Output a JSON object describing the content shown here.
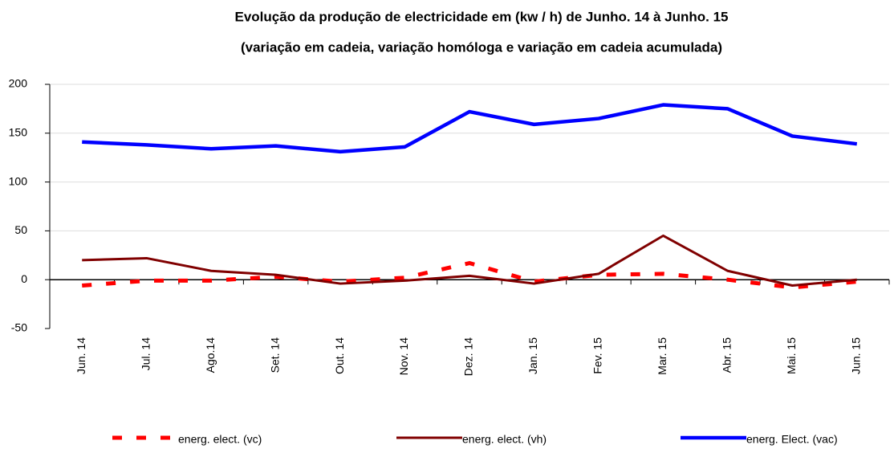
{
  "chart_data": {
    "type": "line",
    "title": [
      "Evolução da produção de electricidade em (kw / h) de Junho. 14 à Junho. 15",
      "(variação em cadeia, variação homóloga e variação em cadeia acumulada)"
    ],
    "categories": [
      "Jun. 14",
      "Jul. 14",
      "Ago.14",
      "Set. 14",
      "Out. 14",
      "Nov. 14",
      "Dez. 14",
      "Jan. 15",
      "Fev. 15",
      "Mar. 15",
      "Abr. 15",
      "Mai. 15",
      "Jun. 15"
    ],
    "series": [
      {
        "name": "energ. elect. (vc)",
        "color": "#ff0000",
        "line_style": "dashed",
        "values": [
          -6,
          -1,
          -1,
          3,
          -2,
          2,
          17,
          -2,
          5,
          6,
          0,
          -8,
          -2
        ]
      },
      {
        "name": "energ. elect. (vh)",
        "color": "#800000",
        "line_style": "solid",
        "values": [
          20,
          22,
          9,
          5,
          -4,
          -1,
          4,
          -4,
          6,
          45,
          9,
          -6,
          0
        ]
      },
      {
        "name": "energ. Elect. (vac)",
        "color": "#0000ff",
        "line_style": "thick",
        "values": [
          141,
          138,
          134,
          137,
          131,
          136,
          172,
          159,
          165,
          179,
          175,
          147,
          139
        ]
      }
    ],
    "ylim": [
      -50,
      200
    ],
    "yticks": [
      -50,
      0,
      50,
      100,
      150,
      200
    ],
    "grid": true,
    "legend": "bottom"
  }
}
